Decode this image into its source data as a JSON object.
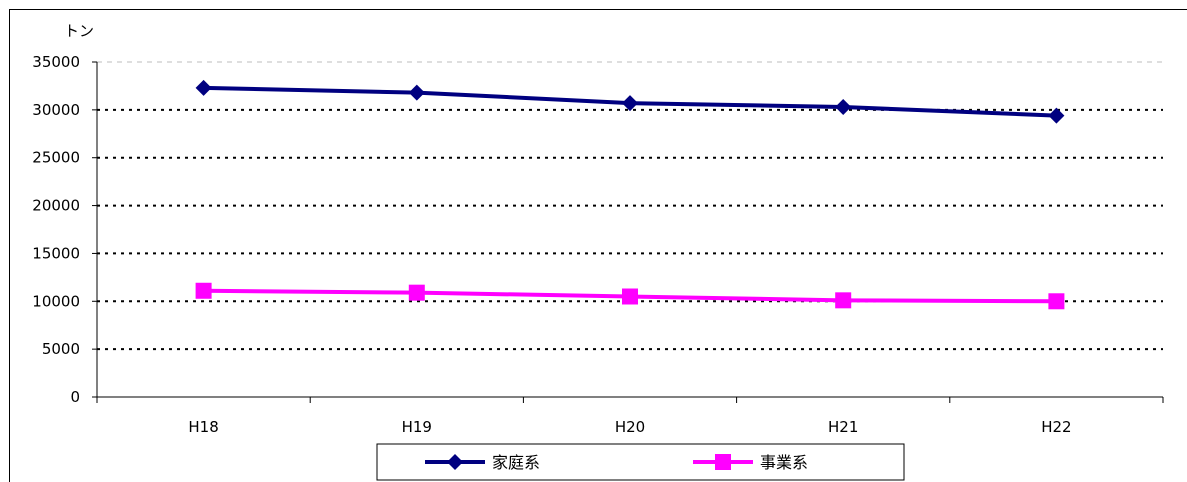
{
  "chart_data": {
    "type": "line",
    "ylabel": "トン",
    "categories": [
      "H18",
      "H19",
      "H20",
      "H21",
      "H22"
    ],
    "ylim": [
      0,
      35000
    ],
    "yticks": [
      0,
      5000,
      10000,
      15000,
      20000,
      25000,
      30000,
      35000
    ],
    "grid": true,
    "legend_position": "bottom",
    "series": [
      {
        "name": "家庭系",
        "color": "#000080",
        "marker": "diamond",
        "values": [
          32300,
          31800,
          30700,
          30300,
          29400
        ]
      },
      {
        "name": "事業系",
        "color": "#ff00ff",
        "marker": "square",
        "values": [
          11100,
          10900,
          10500,
          10100,
          10000
        ]
      }
    ]
  }
}
